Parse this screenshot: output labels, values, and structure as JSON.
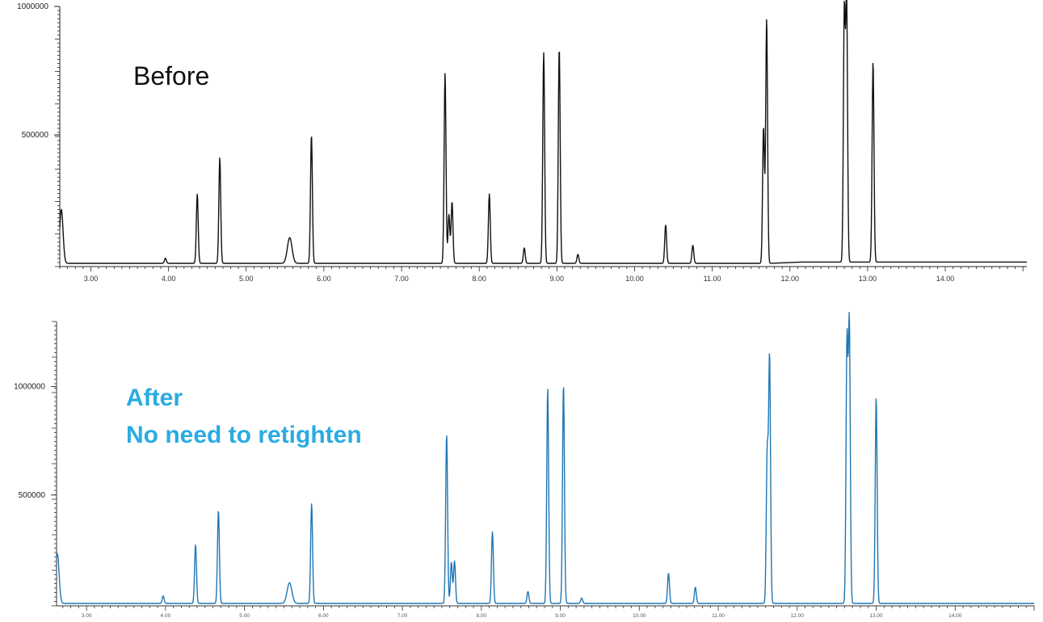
{
  "chart_data": [
    {
      "type": "line",
      "annotation": "Before",
      "color": "#111111",
      "xlim": [
        2.6,
        15.05
      ],
      "ylim": [
        0,
        1000000
      ],
      "yticks": [
        {
          "value": 1000000,
          "label": "1000000"
        },
        {
          "value": 500000,
          "label": "500000"
        }
      ],
      "xticks": [
        {
          "value": 3,
          "label": "3.00"
        },
        {
          "value": 4,
          "label": "4.00"
        },
        {
          "value": 5,
          "label": "5.00"
        },
        {
          "value": 6,
          "label": "6.00"
        },
        {
          "value": 7,
          "label": "7.00"
        },
        {
          "value": 8,
          "label": "8.00"
        },
        {
          "value": 9,
          "label": "9.00"
        },
        {
          "value": 10,
          "label": "10.00"
        },
        {
          "value": 11,
          "label": "11.00"
        },
        {
          "value": 12,
          "label": "12.00"
        },
        {
          "value": 13,
          "label": "13.00"
        },
        {
          "value": 14,
          "label": "14.00"
        }
      ],
      "peaks": [
        {
          "rt": 2.62,
          "height": 210000
        },
        {
          "rt": 3.96,
          "height": 20000
        },
        {
          "rt": 4.37,
          "height": 270000
        },
        {
          "rt": 4.66,
          "height": 410000
        },
        {
          "rt": 5.56,
          "height": 100000
        },
        {
          "rt": 5.84,
          "height": 500000
        },
        {
          "rt": 7.56,
          "height": 740000
        },
        {
          "rt": 7.61,
          "height": 190000
        },
        {
          "rt": 7.65,
          "height": 240000
        },
        {
          "rt": 8.13,
          "height": 270000
        },
        {
          "rt": 8.58,
          "height": 60000
        },
        {
          "rt": 8.83,
          "height": 820000
        },
        {
          "rt": 9.03,
          "height": 840000
        },
        {
          "rt": 9.27,
          "height": 35000
        },
        {
          "rt": 10.4,
          "height": 150000
        },
        {
          "rt": 10.75,
          "height": 70000
        },
        {
          "rt": 11.66,
          "height": 530000
        },
        {
          "rt": 11.7,
          "height": 950000
        },
        {
          "rt": 12.7,
          "height": 970000
        },
        {
          "rt": 12.73,
          "height": 1010000
        },
        {
          "rt": 13.07,
          "height": 780000
        }
      ]
    },
    {
      "type": "line",
      "annotation": "After\nNo need to retighten",
      "color": "#1F77B4",
      "xlim": [
        2.62,
        15.0
      ],
      "ylim": [
        0,
        1300000
      ],
      "yticks": [
        {
          "value": 1000000,
          "label": "1000000"
        },
        {
          "value": 500000,
          "label": "500000"
        }
      ],
      "xticks": [
        {
          "value": 3,
          "label": "3.00"
        },
        {
          "value": 4,
          "label": "4.00"
        },
        {
          "value": 5,
          "label": "5.00"
        },
        {
          "value": 6,
          "label": "6.00"
        },
        {
          "value": 7,
          "label": "7.00"
        },
        {
          "value": 8,
          "label": "8.00"
        },
        {
          "value": 9,
          "label": "9.00"
        },
        {
          "value": 10,
          "label": "10.00"
        },
        {
          "value": 11,
          "label": "11.00"
        },
        {
          "value": 12,
          "label": "12.00"
        },
        {
          "value": 13,
          "label": "13.00"
        },
        {
          "value": 14,
          "label": "14.00"
        }
      ],
      "peaks": [
        {
          "rt": 2.63,
          "height": 230000
        },
        {
          "rt": 3.97,
          "height": 35000
        },
        {
          "rt": 4.38,
          "height": 270000
        },
        {
          "rt": 4.67,
          "height": 430000
        },
        {
          "rt": 5.57,
          "height": 95000
        },
        {
          "rt": 5.85,
          "height": 460000
        },
        {
          "rt": 7.56,
          "height": 780000
        },
        {
          "rt": 7.62,
          "height": 190000
        },
        {
          "rt": 7.66,
          "height": 195000
        },
        {
          "rt": 8.14,
          "height": 330000
        },
        {
          "rt": 8.59,
          "height": 55000
        },
        {
          "rt": 8.84,
          "height": 990000
        },
        {
          "rt": 9.04,
          "height": 1010000
        },
        {
          "rt": 9.27,
          "height": 25000
        },
        {
          "rt": 10.37,
          "height": 140000
        },
        {
          "rt": 10.71,
          "height": 75000
        },
        {
          "rt": 11.62,
          "height": 690000
        },
        {
          "rt": 11.65,
          "height": 1130000
        },
        {
          "rt": 12.63,
          "height": 1200000
        },
        {
          "rt": 12.66,
          "height": 1280000
        },
        {
          "rt": 13.0,
          "height": 950000
        }
      ]
    }
  ]
}
